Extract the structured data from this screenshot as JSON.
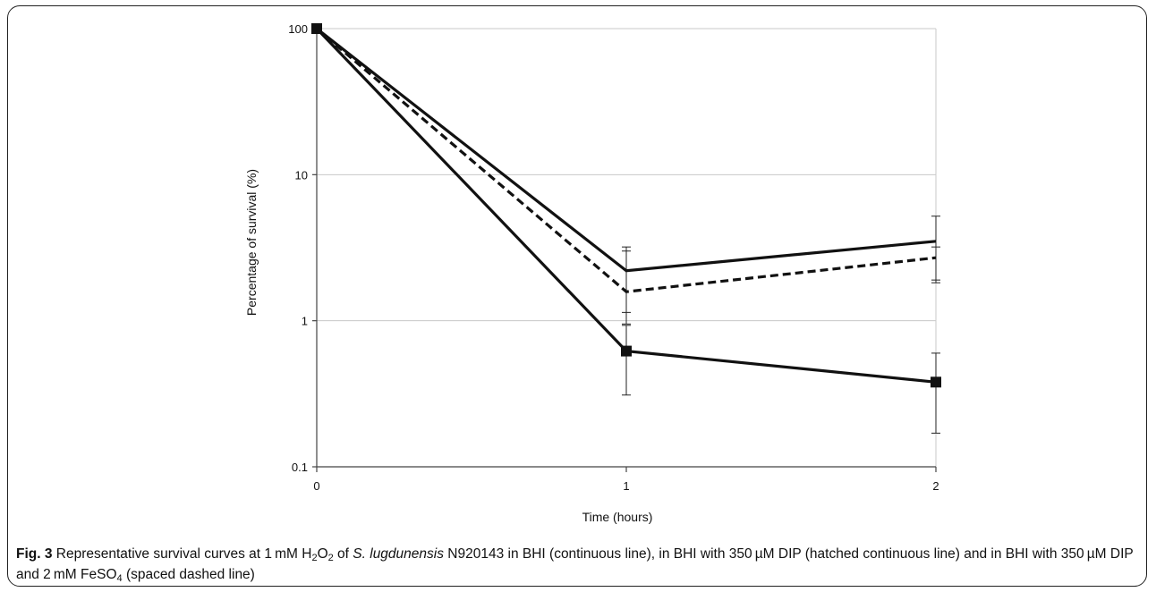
{
  "chart_data": {
    "type": "line",
    "xlabel": "Time (hours)",
    "ylabel": "Percentage of survival (%)",
    "y_scale": "log",
    "ylim": [
      0.1,
      100
    ],
    "xlim": [
      0,
      2
    ],
    "x_ticks": [
      "0",
      "1",
      "2"
    ],
    "y_ticks": [
      "0.1",
      "1",
      "10",
      "100"
    ],
    "grid": "horizontal",
    "x": [
      0,
      1,
      2
    ],
    "series": [
      {
        "style": "solid-square-markers",
        "values": [
          100,
          0.62,
          0.38
        ],
        "err_low": [
          100,
          0.31,
          0.17
        ],
        "err_high": [
          100,
          0.93,
          0.6
        ]
      },
      {
        "style": "solid",
        "values": [
          100,
          2.2,
          3.5
        ],
        "err_low": [
          100,
          1.14,
          1.82
        ],
        "err_high": [
          100,
          3.2,
          5.2
        ]
      },
      {
        "style": "dashed",
        "values": [
          100,
          1.58,
          2.7
        ],
        "err_low": [
          100,
          0.95,
          1.9
        ],
        "err_high": [
          100,
          3.0,
          3.2
        ]
      }
    ]
  },
  "caption": {
    "fig_label": "Fig. 3",
    "t1": " Representative survival curves at 1 mM H",
    "sub1": "2",
    "t2": "O",
    "sub2": "2",
    "t3": " of ",
    "species": "S. lugdunensis",
    "t4": " N920143 in BHI (continuous line), in BHI with 350 µM DIP (hatched continuous line) and in BHI with 350 µM DIP and 2 mM FeSO",
    "sub3": "4",
    "t5": " (spaced dashed line)"
  }
}
